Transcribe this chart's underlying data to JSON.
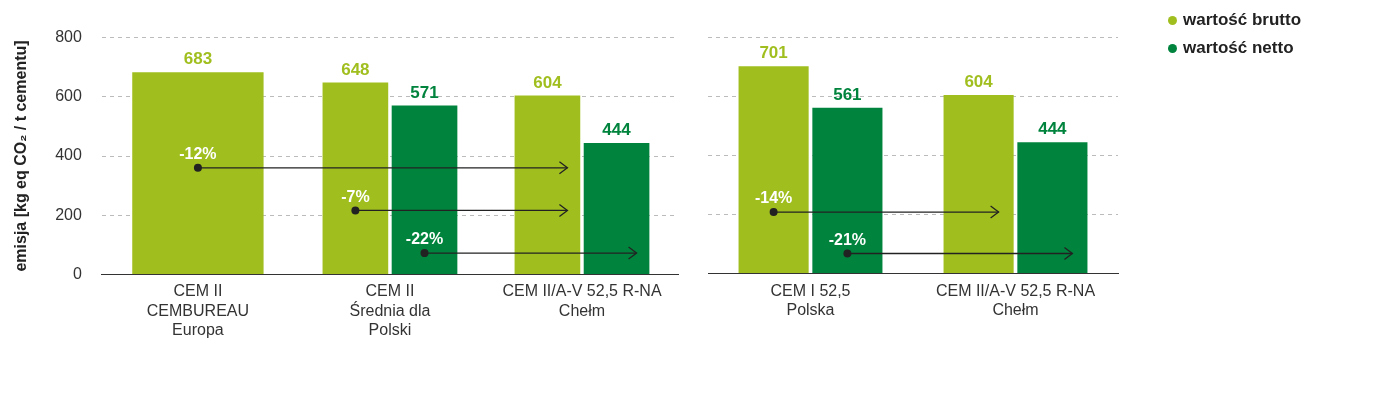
{
  "chart_data": [
    {
      "type": "bar",
      "ylabel": "emisja [kg eq CO₂ / t cementu]",
      "categories": [
        "CEM II\nCEMBUREAU\nEuropa",
        "CEM II\nŚrednia dla\nPolski",
        "CEM II/A-V 52,5 R-NA\nChełm"
      ],
      "series": [
        {
          "color": "#a0bf1f",
          "values": [
            683,
            648,
            604
          ]
        },
        {
          "color": "#00843d",
          "values": [
            null,
            571,
            444
          ]
        }
      ],
      "ylim": [
        0,
        800
      ],
      "yticks": [
        0,
        200,
        400,
        600,
        800
      ],
      "grid": "y",
      "data_labels": true,
      "legend": false,
      "annotations": [
        "-12%",
        "-7%",
        "-22%"
      ]
    },
    {
      "type": "bar",
      "categories": [
        "CEM I 52,5\nPolska",
        "CEM II/A-V 52,5 R-NA\nChełm"
      ],
      "series": [
        {
          "name": "wartość brutto",
          "color": "#a0bf1f",
          "values": [
            701,
            604
          ]
        },
        {
          "name": "wartość netto",
          "color": "#00843d",
          "values": [
            561,
            444
          ]
        }
      ],
      "ylim": [
        0,
        800
      ],
      "yticks": [
        0,
        200,
        400,
        600,
        800
      ],
      "grid": "y",
      "data_labels": true,
      "legend": "right",
      "tick_labels": "x",
      "annotations": [
        "-14%",
        "-21%"
      ]
    }
  ]
}
